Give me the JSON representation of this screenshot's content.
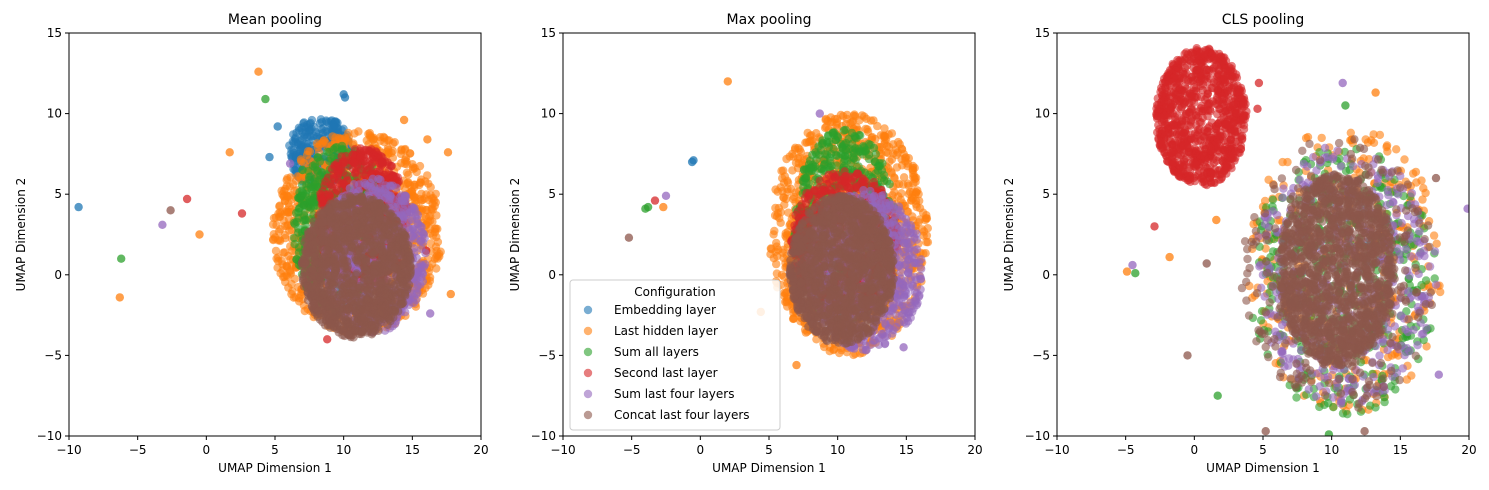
{
  "chart_data": [
    {
      "type": "scatter",
      "title": "Mean pooling",
      "xlabel": "UMAP Dimension 1",
      "ylabel": "UMAP Dimension 2",
      "xlim": [
        -10,
        20
      ],
      "ylim": [
        -10,
        15
      ],
      "xticks": [
        -10,
        -5,
        0,
        5,
        10,
        15,
        20
      ],
      "yticks": [
        -10,
        -5,
        0,
        5,
        10,
        15
      ],
      "grid": false,
      "series": [
        {
          "name": "Embedding layer",
          "color": "#1f77b4",
          "clusters": [
            {
              "cx": 8.3,
              "cy": 7.6,
              "rx": 2.3,
              "ry": 2.2,
              "n": 320
            }
          ],
          "points": [
            [
              -9.3,
              4.2
            ],
            [
              10.1,
              11.0
            ],
            [
              10.0,
              11.2
            ],
            [
              5.2,
              9.2
            ],
            [
              4.6,
              7.3
            ]
          ]
        },
        {
          "name": "Last hidden layer",
          "color": "#ff7f0e",
          "clusters": [
            {
              "cx": 11.0,
              "cy": 2.6,
              "rx": 6.2,
              "ry": 6.3,
              "n": 1000
            }
          ],
          "points": [
            [
              3.8,
              12.6
            ],
            [
              -6.3,
              -1.4
            ],
            [
              -0.5,
              2.5
            ],
            [
              1.7,
              7.6
            ],
            [
              16.1,
              8.4
            ],
            [
              17.6,
              7.6
            ],
            [
              17.8,
              -1.2
            ],
            [
              14.4,
              9.6
            ]
          ]
        },
        {
          "name": "Sum all layers",
          "color": "#2ca02c",
          "clusters": [
            {
              "cx": 9.8,
              "cy": 2.8,
              "rx": 3.5,
              "ry": 5.2,
              "n": 550
            }
          ],
          "points": [
            [
              4.3,
              10.9
            ],
            [
              -6.2,
              1.0
            ],
            [
              7.0,
              6.5
            ]
          ]
        },
        {
          "name": "Second last layer",
          "color": "#d62728",
          "clusters": [
            {
              "cx": 11.4,
              "cy": 3.5,
              "rx": 3.3,
              "ry": 4.4,
              "n": 650
            }
          ],
          "points": [
            [
              -1.4,
              4.7
            ],
            [
              2.6,
              3.8
            ],
            [
              8.8,
              -4.0
            ],
            [
              16.0,
              1.5
            ]
          ]
        },
        {
          "name": "Sum last four layers",
          "color": "#9467bd",
          "clusters": [
            {
              "cx": 12.2,
              "cy": 1.2,
              "rx": 3.8,
              "ry": 4.8,
              "n": 600
            }
          ],
          "points": [
            [
              -3.2,
              3.1
            ],
            [
              16.3,
              -2.4
            ],
            [
              15.0,
              2.4
            ],
            [
              6.1,
              6.9
            ]
          ]
        },
        {
          "name": "Concat last four layers",
          "color": "#8c564b",
          "clusters": [
            {
              "cx": 10.9,
              "cy": 0.5,
              "rx": 4.0,
              "ry": 4.4,
              "n": 1300
            }
          ],
          "points": [
            [
              -2.6,
              4.0
            ]
          ]
        }
      ]
    },
    {
      "type": "scatter",
      "title": "Max pooling",
      "xlabel": "UMAP Dimension 1",
      "ylabel": "UMAP Dimension 2",
      "xlim": [
        -10,
        20
      ],
      "ylim": [
        -10,
        15
      ],
      "xticks": [
        -10,
        -5,
        0,
        5,
        10,
        15,
        20
      ],
      "yticks": [
        -10,
        -5,
        0,
        5,
        10,
        15
      ],
      "grid": false,
      "legend": {
        "title": "Configuration",
        "placement": "lower-left"
      },
      "series": [
        {
          "name": "Embedding layer",
          "color": "#1f77b4",
          "clusters": [],
          "points": [
            [
              -0.5,
              7.1
            ],
            [
              -0.6,
              7.0
            ]
          ]
        },
        {
          "name": "Last hidden layer",
          "color": "#ff7f0e",
          "clusters": [
            {
              "cx": 10.8,
              "cy": 2.5,
              "rx": 5.8,
              "ry": 7.5,
              "n": 1000
            }
          ],
          "points": [
            [
              2.0,
              12.0
            ],
            [
              -2.7,
              4.2
            ],
            [
              4.4,
              -2.3
            ],
            [
              16.5,
              3.5
            ],
            [
              7.0,
              -5.6
            ]
          ]
        },
        {
          "name": "Sum all layers",
          "color": "#2ca02c",
          "clusters": [
            {
              "cx": 10.5,
              "cy": 3.0,
              "rx": 3.7,
              "ry": 6.0,
              "n": 600
            }
          ],
          "points": [
            [
              -4.0,
              4.1
            ],
            [
              -3.8,
              4.2
            ]
          ]
        },
        {
          "name": "Second last layer",
          "color": "#d62728",
          "clusters": [
            {
              "cx": 10.5,
              "cy": 2.0,
              "rx": 3.9,
              "ry": 4.5,
              "n": 650
            }
          ],
          "points": [
            [
              -3.3,
              4.6
            ]
          ]
        },
        {
          "name": "Sum last four layers",
          "color": "#9467bd",
          "clusters": [
            {
              "cx": 12.0,
              "cy": 0.3,
              "rx": 4.2,
              "ry": 5.0,
              "n": 600
            }
          ],
          "points": [
            [
              -2.5,
              4.9
            ],
            [
              8.7,
              10.0
            ],
            [
              14.8,
              -4.5
            ]
          ]
        },
        {
          "name": "Concat last four layers",
          "color": "#8c564b",
          "clusters": [
            {
              "cx": 10.3,
              "cy": 0.3,
              "rx": 3.8,
              "ry": 4.6,
              "n": 1300
            }
          ],
          "points": [
            [
              -5.2,
              2.3
            ]
          ]
        }
      ]
    },
    {
      "type": "scatter",
      "title": "CLS pooling",
      "xlabel": "UMAP Dimension 1",
      "ylabel": "UMAP Dimension 2",
      "xlim": [
        -10,
        20
      ],
      "ylim": [
        -10,
        15
      ],
      "xticks": [
        -10,
        -5,
        0,
        5,
        10,
        15,
        20
      ],
      "yticks": [
        -10,
        -5,
        0,
        5,
        10,
        15
      ],
      "grid": false,
      "series": [
        {
          "name": "Embedding layer",
          "color": "#1f77b4",
          "clusters": [],
          "points": []
        },
        {
          "name": "Last hidden layer",
          "color": "#ff7f0e",
          "clusters": [
            {
              "cx": 11.0,
              "cy": 0.3,
              "rx": 7.5,
              "ry": 9.5,
              "n": 320,
              "sparse": true
            }
          ],
          "points": [
            [
              -4.9,
              0.2
            ],
            [
              -1.8,
              1.1
            ],
            [
              1.6,
              3.4
            ],
            [
              13.2,
              11.3
            ]
          ]
        },
        {
          "name": "Sum all layers",
          "color": "#2ca02c",
          "clusters": [
            {
              "cx": 10.8,
              "cy": -0.5,
              "rx": 7.2,
              "ry": 9.0,
              "n": 420,
              "sparse": true
            }
          ],
          "points": [
            [
              -4.3,
              0.1
            ],
            [
              1.7,
              -7.5
            ],
            [
              11.0,
              10.5
            ],
            [
              9.8,
              -9.9
            ]
          ]
        },
        {
          "name": "Second last layer",
          "color": "#d62728",
          "clusters": [
            {
              "cx": 0.5,
              "cy": 9.8,
              "rx": 3.3,
              "ry": 4.3,
              "n": 900
            }
          ],
          "points": [
            [
              -2.9,
              3.0
            ],
            [
              4.7,
              11.9
            ],
            [
              4.6,
              10.3
            ]
          ]
        },
        {
          "name": "Sum last four layers",
          "color": "#9467bd",
          "clusters": [
            {
              "cx": 11.0,
              "cy": 0.0,
              "rx": 7.0,
              "ry": 8.5,
              "n": 420,
              "sparse": true
            }
          ],
          "points": [
            [
              -4.5,
              0.6
            ],
            [
              10.8,
              11.9
            ],
            [
              17.8,
              -6.2
            ],
            [
              19.9,
              4.1
            ]
          ]
        },
        {
          "name": "Concat last four layers",
          "color": "#8c564b",
          "clusters": [
            {
              "cx": 10.4,
              "cy": 0.3,
              "rx": 4.2,
              "ry": 6.0,
              "n": 1300
            },
            {
              "cx": 10.5,
              "cy": 0.0,
              "rx": 7.5,
              "ry": 9.0,
              "n": 250,
              "sparse": true
            }
          ],
          "points": [
            [
              -0.5,
              -5.0
            ],
            [
              0.9,
              0.7
            ],
            [
              5.2,
              -9.7
            ],
            [
              12.4,
              -9.7
            ],
            [
              17.6,
              6.0
            ]
          ]
        }
      ]
    }
  ]
}
